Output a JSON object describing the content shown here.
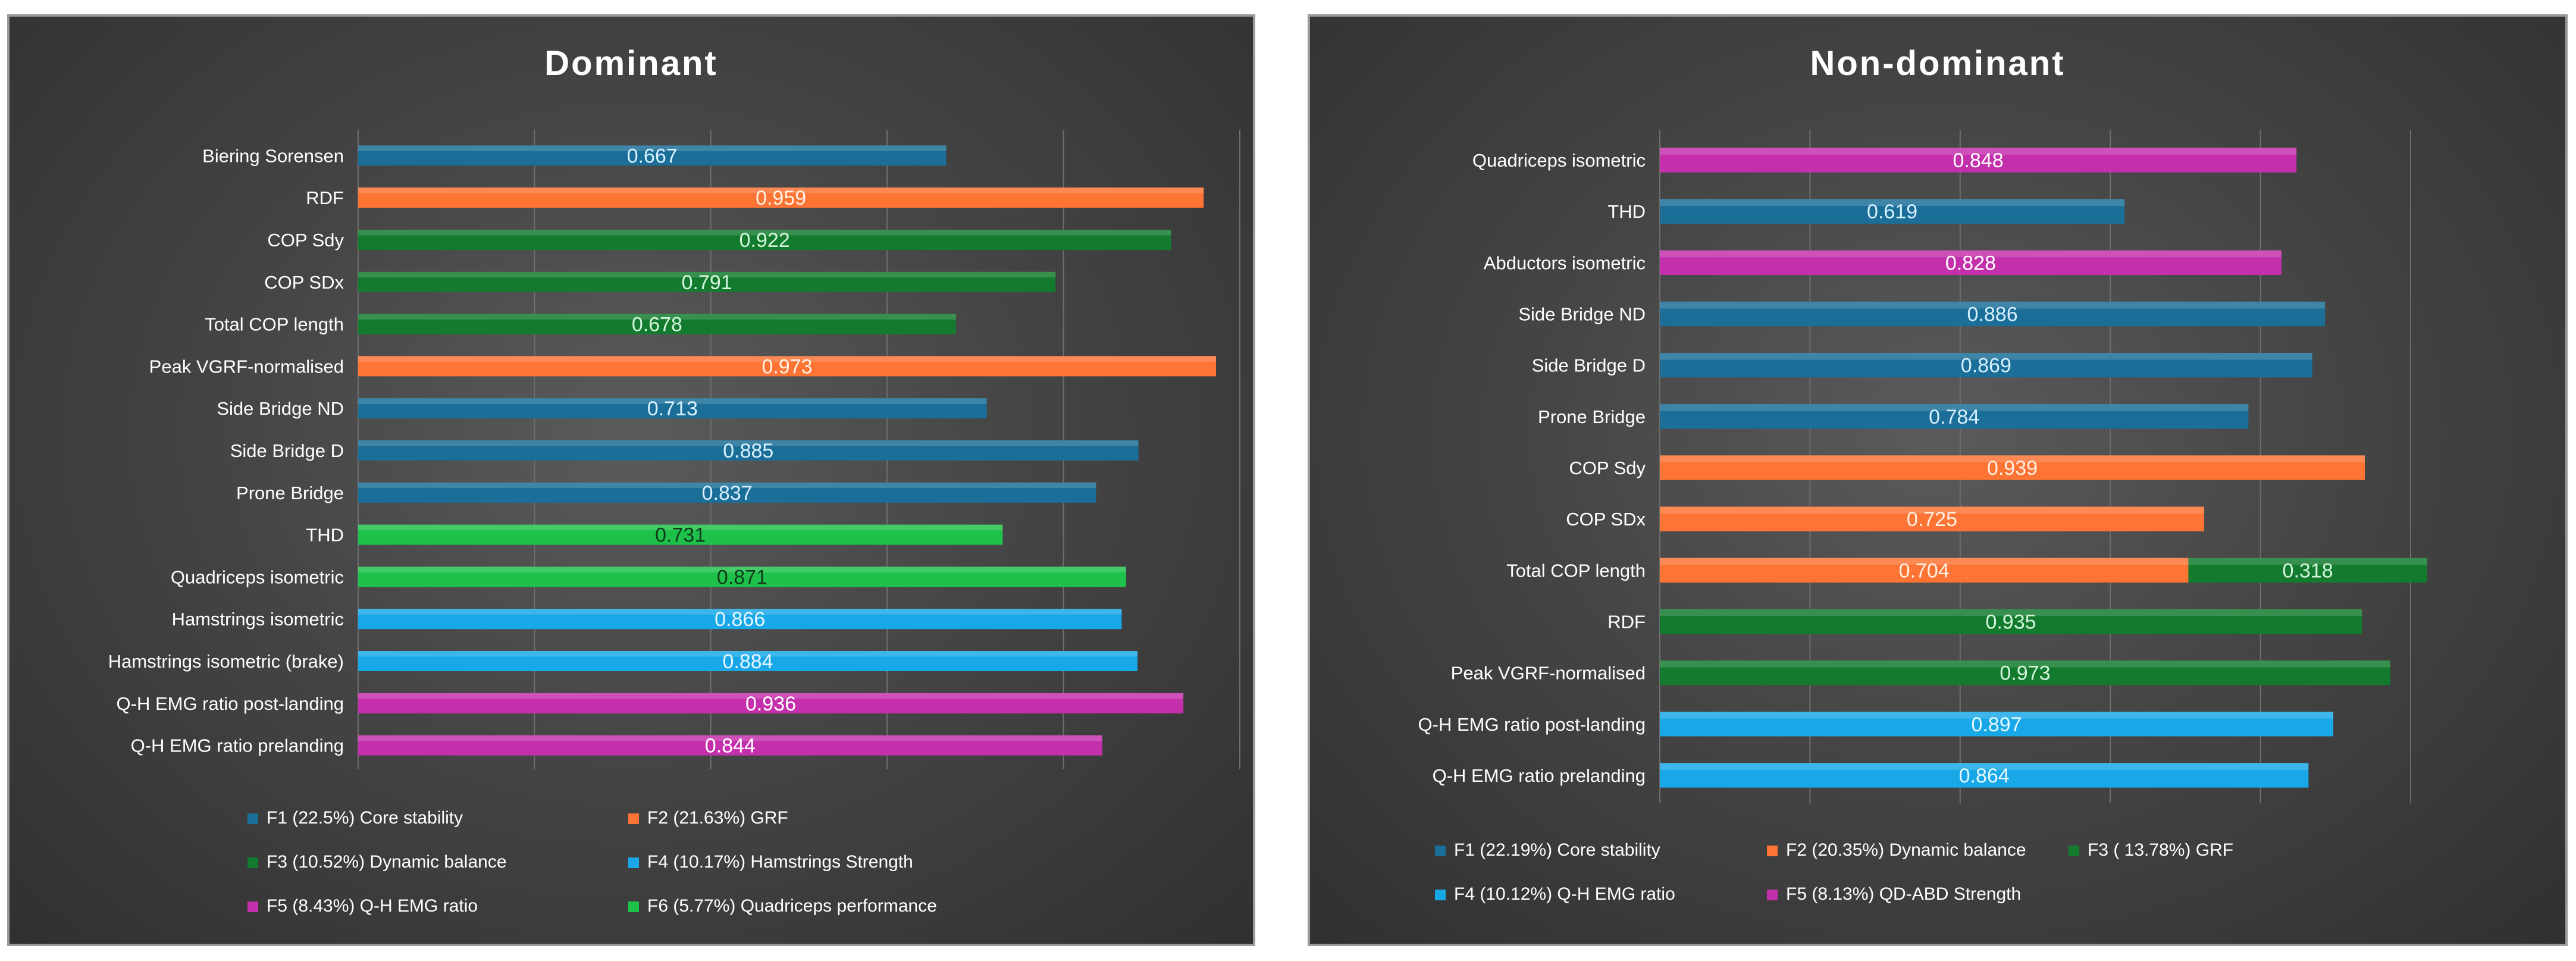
{
  "chart_data": [
    {
      "type": "bar",
      "orientation": "horizontal",
      "title": "Dominant",
      "xlim": [
        0,
        1
      ],
      "grid": true,
      "categories": [
        "Biering Sorensen",
        "RDF",
        "COP Sdy",
        "COP SDx",
        "Total COP length",
        "Peak VGRF-normalised",
        "Side Bridge ND",
        "Side Bridge D",
        "Prone Bridge",
        "THD",
        "Quadriceps isometric",
        "Hamstrings isometric",
        "Hamstrings isometric (brake)",
        "Q-H EMG ratio post-landing",
        "Q-H EMG ratio prelanding"
      ],
      "bars": [
        {
          "category": "Biering Sorensen",
          "series": "F1",
          "value": 0.667,
          "label": "0.667"
        },
        {
          "category": "RDF",
          "series": "F2",
          "value": 0.959,
          "label": "0.959"
        },
        {
          "category": "COP Sdy",
          "series": "F3",
          "value": 0.922,
          "label": "0.922"
        },
        {
          "category": "COP SDx",
          "series": "F3",
          "value": 0.791,
          "label": "0.791"
        },
        {
          "category": "Total COP length",
          "series": "F3",
          "value": 0.678,
          "label": "0.678"
        },
        {
          "category": "Peak VGRF-normalised",
          "series": "F2",
          "value": 0.973,
          "label": "0.973"
        },
        {
          "category": "Side Bridge ND",
          "series": "F1",
          "value": 0.713,
          "label": "0.713"
        },
        {
          "category": "Side Bridge D",
          "series": "F1",
          "value": 0.885,
          "label": "0.885"
        },
        {
          "category": "Prone Bridge",
          "series": "F1",
          "value": 0.837,
          "label": "0.837"
        },
        {
          "category": "THD",
          "series": "F6",
          "value": 0.731,
          "label": "0.731"
        },
        {
          "category": "Quadriceps isometric",
          "series": "F6",
          "value": 0.871,
          "label": "0.871"
        },
        {
          "category": "Hamstrings isometric",
          "series": "F4",
          "value": 0.866,
          "label": "0.866"
        },
        {
          "category": "Hamstrings isometric (brake)",
          "series": "F4",
          "value": 0.884,
          "label": "0.884"
        },
        {
          "category": "Q-H EMG ratio post-landing",
          "series": "F5",
          "value": 0.936,
          "label": "0.936"
        },
        {
          "category": "Q-H EMG ratio prelanding",
          "series": "F5",
          "value": 0.844,
          "label": "0.844"
        }
      ],
      "series": [
        {
          "key": "F1",
          "name": "F1  (22.5%) Core stability",
          "color": "#1b6e97",
          "label_color": "#d7f0ff"
        },
        {
          "key": "F2",
          "name": "F2 (21.63%) GRF",
          "color": "#fd7434",
          "label_color": "#fff1e6"
        },
        {
          "key": "F3",
          "name": "F3 (10.52%) Dynamic balance",
          "color": "#137b2e",
          "label_color": "#d4f5dc"
        },
        {
          "key": "F4",
          "name": "F4 (10.17%) Hamstrings Strength",
          "color": "#18a8e8",
          "label_color": "#e6f7ff"
        },
        {
          "key": "F5",
          "name": "F5 (8.43%) Q-H EMG ratio",
          "color": "#c430ac",
          "label_color": "#ffffff"
        },
        {
          "key": "F6",
          "name": "F6 (5.77%) Quadriceps performance",
          "color": "#1ec24a",
          "label_color": "#103a1a"
        }
      ],
      "legend_position": "bottom"
    },
    {
      "type": "bar",
      "orientation": "horizontal",
      "stacked": true,
      "title": "Non-dominant",
      "xlim": [
        0,
        1
      ],
      "grid": true,
      "categories": [
        "Quadriceps isometric",
        "THD",
        "Abductors isometric",
        "Side Bridge ND",
        "Side Bridge D",
        "Prone Bridge",
        "COP Sdy",
        "COP SDx",
        "Total COP length",
        "RDF",
        "Peak VGRF-normalised",
        "Q-H EMG ratio post-landing",
        "Q-H EMG ratio prelanding"
      ],
      "bars": [
        {
          "category": "Quadriceps isometric",
          "series": "F5",
          "value": 0.848,
          "label": "0.848"
        },
        {
          "category": "THD",
          "series": "F1",
          "value": 0.619,
          "label": "0.619"
        },
        {
          "category": "Abductors isometric",
          "series": "F5",
          "value": 0.828,
          "label": "0.828"
        },
        {
          "category": "Side Bridge ND",
          "series": "F1",
          "value": 0.886,
          "label": "0.886"
        },
        {
          "category": "Side Bridge D",
          "series": "F1",
          "value": 0.869,
          "label": "0.869"
        },
        {
          "category": "Prone Bridge",
          "series": "F1",
          "value": 0.784,
          "label": "0.784"
        },
        {
          "category": "COP Sdy",
          "series": "F2",
          "value": 0.939,
          "label": "0.939"
        },
        {
          "category": "COP SDx",
          "series": "F2",
          "value": 0.725,
          "label": "0.725"
        },
        {
          "category": "Total COP length",
          "series": "F2",
          "value": 0.704,
          "label": "0.704"
        },
        {
          "category": "Total COP length",
          "series": "F3",
          "value": 0.318,
          "label": "0.318"
        },
        {
          "category": "RDF",
          "series": "F3",
          "value": 0.935,
          "label": "0.935"
        },
        {
          "category": "Peak VGRF-normalised",
          "series": "F3",
          "value": 0.973,
          "label": "0.973"
        },
        {
          "category": "Q-H EMG ratio post-landing",
          "series": "F4",
          "value": 0.897,
          "label": "0.897"
        },
        {
          "category": "Q-H EMG ratio prelanding",
          "series": "F4",
          "value": 0.864,
          "label": "0.864"
        }
      ],
      "series": [
        {
          "key": "F1",
          "name": "F1 (22.19%) Core stability",
          "color": "#1b6e97",
          "label_color": "#d7f0ff"
        },
        {
          "key": "F2",
          "name": "F2 (20.35%) Dynamic balance",
          "color": "#fd7434",
          "label_color": "#fff1e6"
        },
        {
          "key": "F3",
          "name": "F3 ( 13.78%) GRF",
          "color": "#137b2e",
          "label_color": "#d4f5dc"
        },
        {
          "key": "F4",
          "name": "F4 (10.12%) Q-H EMG ratio",
          "color": "#18a8e8",
          "label_color": "#e6f7ff"
        },
        {
          "key": "F5",
          "name": "F5 (8.13%) QD-ABD Strength",
          "color": "#c430ac",
          "label_color": "#ffffff"
        }
      ],
      "legend_position": "bottom"
    }
  ]
}
